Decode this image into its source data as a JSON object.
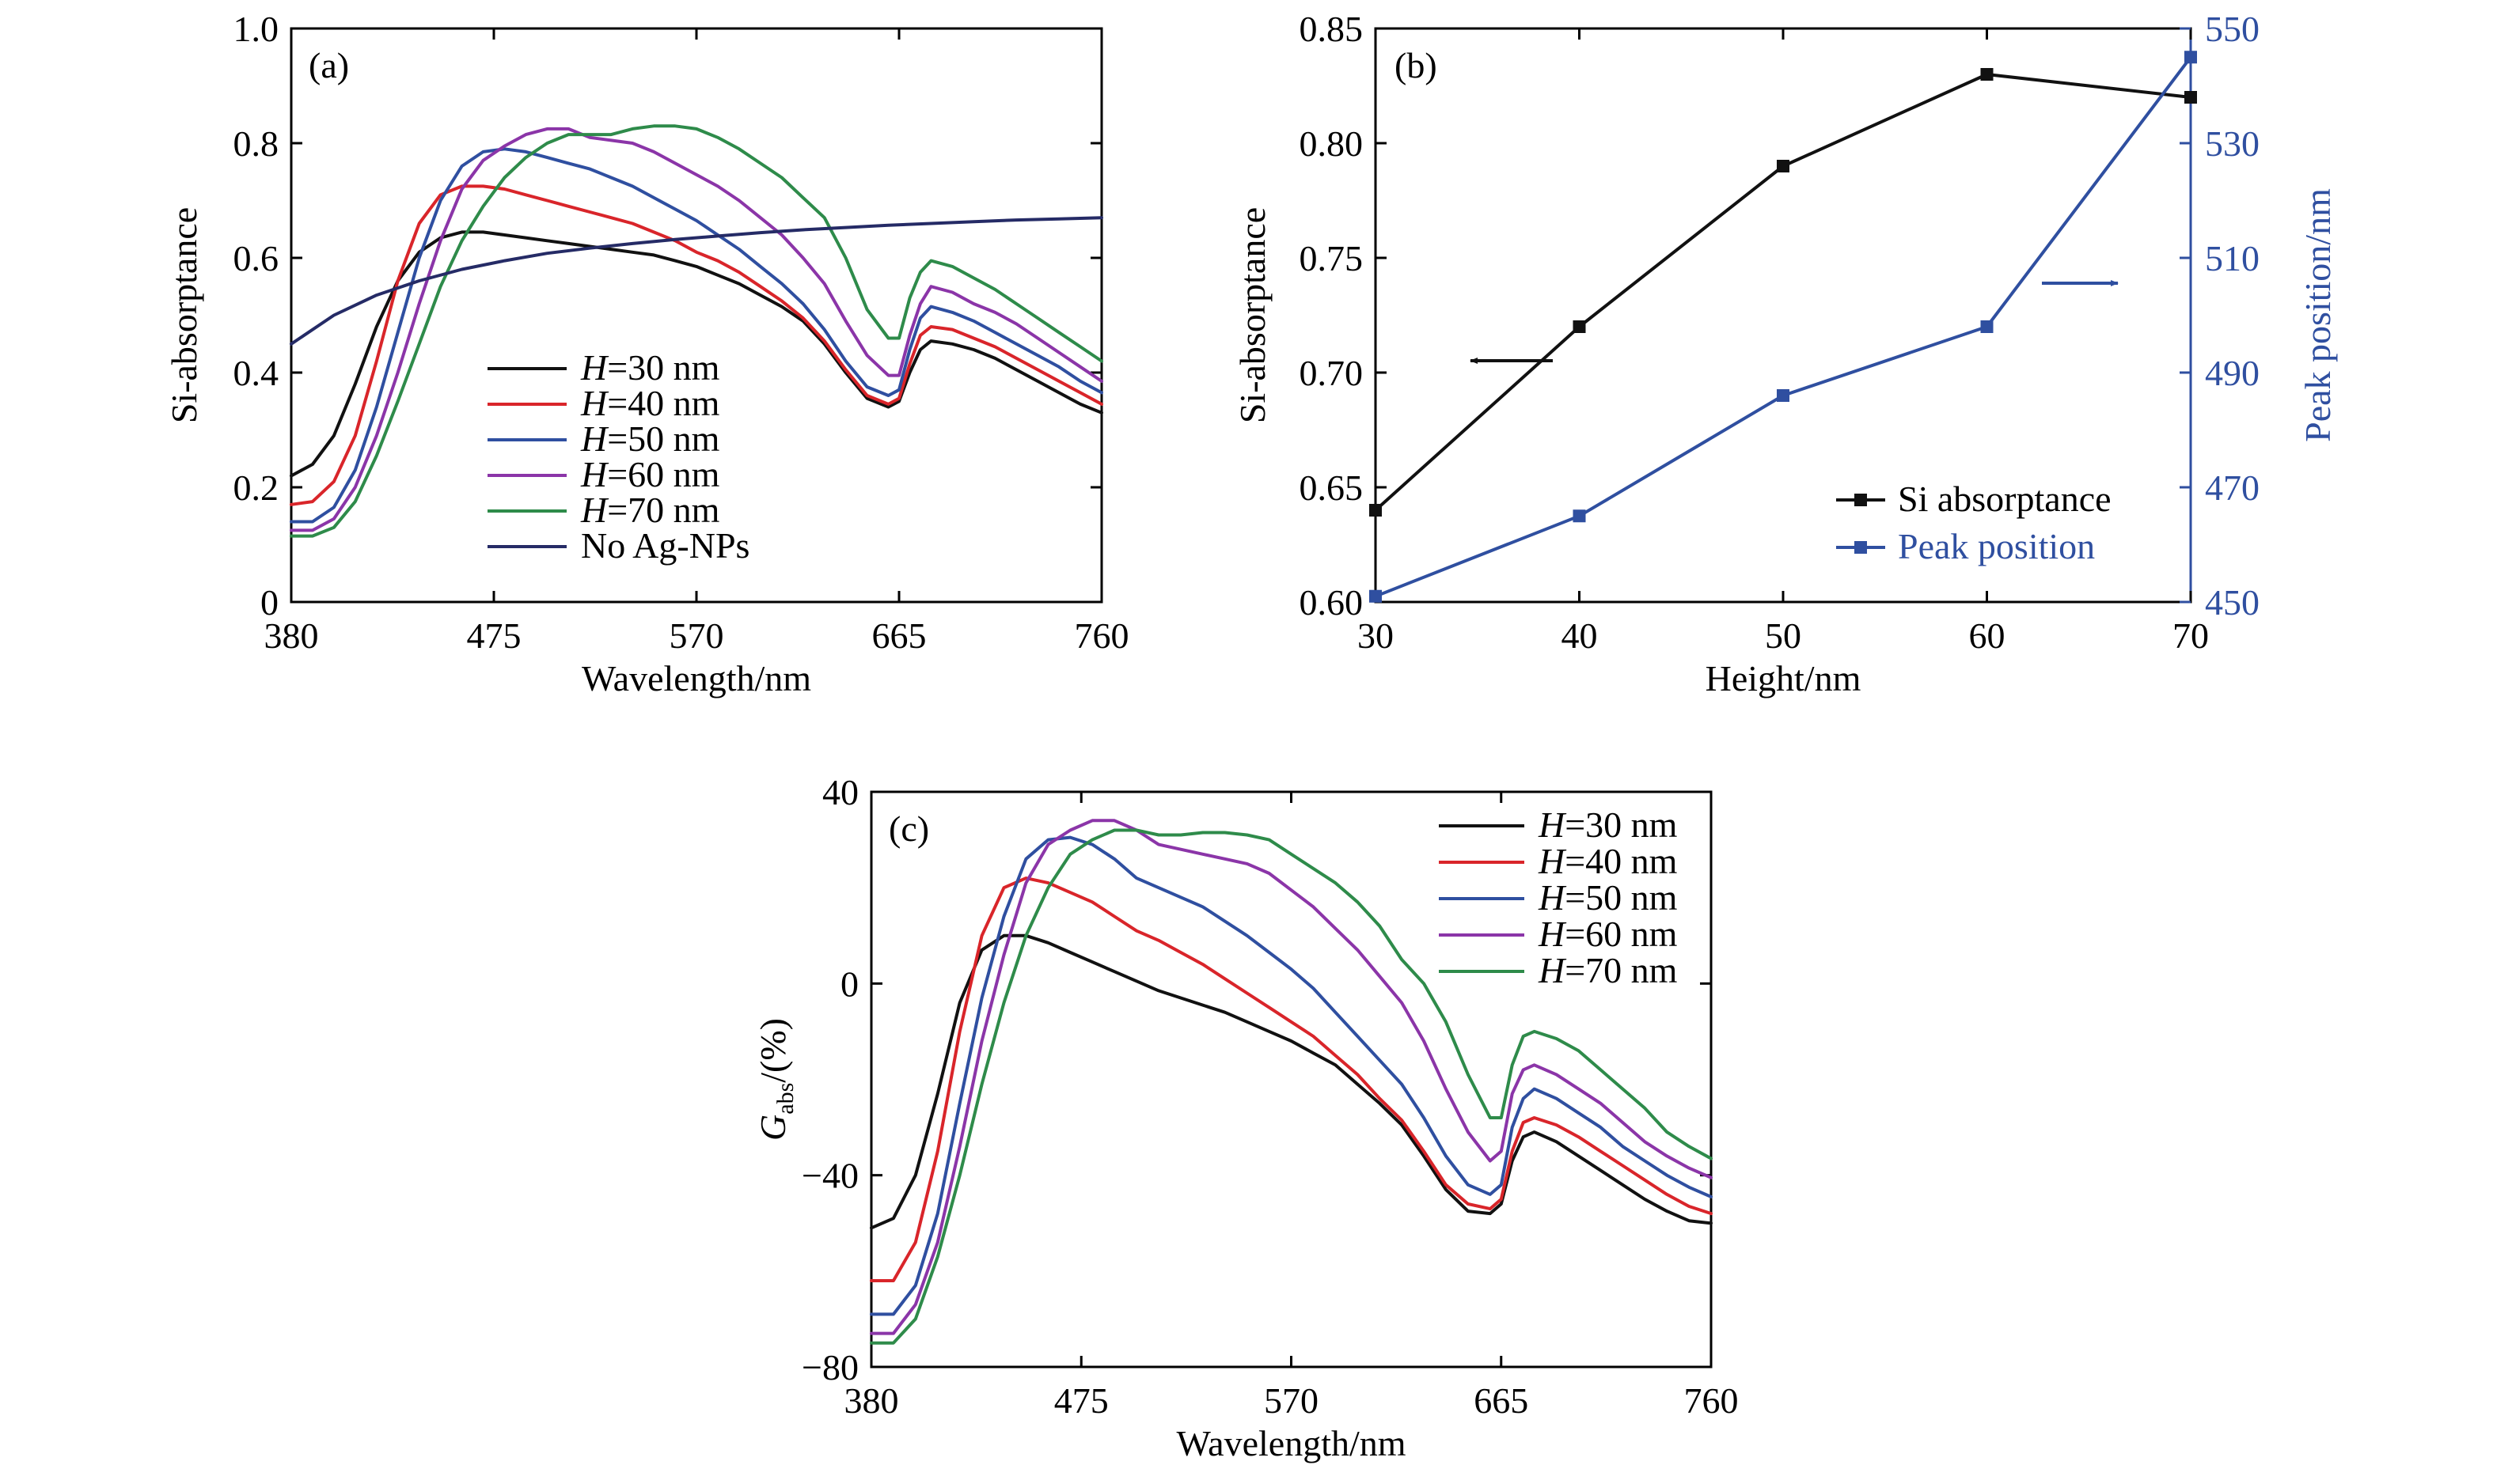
{
  "colors": {
    "h30": "#111111",
    "h40": "#d9252a",
    "h50": "#2f4fa0",
    "h60": "#8b35a8",
    "h70": "#2e8b4a",
    "no_ag": "#252b66",
    "peak_axis": "#2f4fa0"
  },
  "chart_data": [
    {
      "id": "a",
      "type": "line",
      "panel_label": "(a)",
      "xlabel": "Wavelength/nm",
      "ylabel": "Si-absorptance",
      "xlim": [
        380,
        760
      ],
      "ylim": [
        0,
        1.0
      ],
      "xticks": [
        "380",
        "475",
        "570",
        "665",
        "760"
      ],
      "yticks": [
        "0",
        "0.2",
        "0.4",
        "0.6",
        "0.8",
        "1.0"
      ],
      "legend_position": "lower-center",
      "series": [
        {
          "name": "=30 nm",
          "name_italic": "H",
          "color_key": "h30",
          "x": [
            380,
            390,
            400,
            410,
            420,
            430,
            440,
            450,
            460,
            470,
            480,
            490,
            500,
            510,
            520,
            530,
            540,
            550,
            560,
            570,
            580,
            590,
            600,
            610,
            620,
            630,
            640,
            650,
            660,
            665,
            670,
            675,
            680,
            690,
            700,
            710,
            720,
            730,
            740,
            750,
            760
          ],
          "y": [
            0.22,
            0.24,
            0.29,
            0.38,
            0.48,
            0.56,
            0.61,
            0.635,
            0.645,
            0.645,
            0.64,
            0.635,
            0.63,
            0.625,
            0.62,
            0.615,
            0.61,
            0.605,
            0.595,
            0.585,
            0.57,
            0.555,
            0.535,
            0.515,
            0.49,
            0.45,
            0.4,
            0.355,
            0.34,
            0.35,
            0.4,
            0.44,
            0.455,
            0.45,
            0.44,
            0.425,
            0.405,
            0.385,
            0.365,
            0.345,
            0.33
          ]
        },
        {
          "name": "=40 nm",
          "name_italic": "H",
          "color_key": "h40",
          "x": [
            380,
            390,
            400,
            410,
            420,
            430,
            440,
            450,
            460,
            470,
            480,
            490,
            500,
            510,
            520,
            530,
            540,
            550,
            560,
            570,
            580,
            590,
            600,
            610,
            620,
            630,
            640,
            650,
            660,
            665,
            670,
            675,
            680,
            690,
            700,
            710,
            720,
            730,
            740,
            750,
            760
          ],
          "y": [
            0.17,
            0.175,
            0.21,
            0.29,
            0.42,
            0.56,
            0.66,
            0.71,
            0.725,
            0.725,
            0.72,
            0.71,
            0.7,
            0.69,
            0.68,
            0.67,
            0.66,
            0.645,
            0.63,
            0.61,
            0.595,
            0.575,
            0.55,
            0.525,
            0.495,
            0.455,
            0.405,
            0.36,
            0.345,
            0.355,
            0.415,
            0.465,
            0.48,
            0.475,
            0.46,
            0.445,
            0.425,
            0.405,
            0.385,
            0.365,
            0.345
          ]
        },
        {
          "name": "=50 nm",
          "name_italic": "H",
          "color_key": "h50",
          "x": [
            380,
            390,
            400,
            410,
            420,
            430,
            440,
            450,
            460,
            470,
            480,
            490,
            500,
            510,
            520,
            530,
            540,
            550,
            560,
            570,
            580,
            590,
            600,
            610,
            620,
            630,
            640,
            650,
            660,
            665,
            670,
            675,
            680,
            690,
            700,
            710,
            720,
            730,
            740,
            750,
            760
          ],
          "y": [
            0.14,
            0.14,
            0.165,
            0.23,
            0.34,
            0.47,
            0.6,
            0.7,
            0.76,
            0.785,
            0.79,
            0.785,
            0.775,
            0.765,
            0.755,
            0.74,
            0.725,
            0.705,
            0.685,
            0.665,
            0.64,
            0.615,
            0.585,
            0.555,
            0.52,
            0.475,
            0.42,
            0.375,
            0.36,
            0.37,
            0.44,
            0.495,
            0.515,
            0.505,
            0.49,
            0.47,
            0.45,
            0.43,
            0.41,
            0.385,
            0.365
          ]
        },
        {
          "name": "=60 nm",
          "name_italic": "H",
          "color_key": "h60",
          "x": [
            380,
            390,
            400,
            410,
            420,
            430,
            440,
            450,
            460,
            470,
            480,
            490,
            500,
            510,
            520,
            530,
            540,
            550,
            560,
            570,
            580,
            590,
            600,
            610,
            620,
            630,
            640,
            650,
            660,
            665,
            670,
            675,
            680,
            690,
            700,
            710,
            720,
            730,
            740,
            750,
            760
          ],
          "y": [
            0.125,
            0.125,
            0.145,
            0.2,
            0.29,
            0.4,
            0.52,
            0.63,
            0.72,
            0.77,
            0.795,
            0.815,
            0.825,
            0.825,
            0.81,
            0.805,
            0.8,
            0.785,
            0.765,
            0.745,
            0.725,
            0.7,
            0.67,
            0.64,
            0.6,
            0.555,
            0.49,
            0.43,
            0.395,
            0.395,
            0.465,
            0.52,
            0.55,
            0.54,
            0.52,
            0.505,
            0.485,
            0.46,
            0.435,
            0.41,
            0.385
          ]
        },
        {
          "name": "=70 nm",
          "name_italic": "H",
          "color_key": "h70",
          "x": [
            380,
            390,
            400,
            410,
            420,
            430,
            440,
            450,
            460,
            470,
            480,
            490,
            500,
            510,
            520,
            530,
            540,
            550,
            560,
            570,
            580,
            590,
            600,
            610,
            620,
            630,
            640,
            650,
            660,
            665,
            670,
            675,
            680,
            690,
            700,
            710,
            720,
            730,
            740,
            750,
            760
          ],
          "y": [
            0.115,
            0.115,
            0.13,
            0.175,
            0.255,
            0.35,
            0.45,
            0.55,
            0.63,
            0.69,
            0.74,
            0.775,
            0.8,
            0.815,
            0.815,
            0.815,
            0.825,
            0.83,
            0.83,
            0.825,
            0.81,
            0.79,
            0.765,
            0.74,
            0.705,
            0.67,
            0.6,
            0.51,
            0.46,
            0.46,
            0.53,
            0.575,
            0.595,
            0.585,
            0.565,
            0.545,
            0.52,
            0.495,
            0.47,
            0.445,
            0.42
          ]
        },
        {
          "name": "No Ag-NPs",
          "name_italic": "",
          "color_key": "no_ag",
          "x": [
            380,
            400,
            420,
            440,
            460,
            480,
            500,
            520,
            540,
            560,
            580,
            600,
            620,
            640,
            660,
            680,
            700,
            720,
            740,
            760
          ],
          "y": [
            0.45,
            0.5,
            0.535,
            0.56,
            0.58,
            0.595,
            0.608,
            0.617,
            0.625,
            0.632,
            0.638,
            0.644,
            0.649,
            0.653,
            0.657,
            0.66,
            0.663,
            0.666,
            0.668,
            0.67
          ]
        }
      ]
    },
    {
      "id": "b",
      "type": "line",
      "panel_label": "(b)",
      "xlabel": "Height/nm",
      "ylabel": "Si-absorptance",
      "ylabel_right": "Peak position/nm",
      "xlim": [
        30,
        70
      ],
      "ylim": [
        0.6,
        0.85
      ],
      "ylim_right": [
        450,
        550
      ],
      "xticks": [
        "30",
        "40",
        "50",
        "60",
        "70"
      ],
      "yticks": [
        "0.60",
        "0.65",
        "0.70",
        "0.75",
        "0.80",
        "0.85"
      ],
      "yticks_right": [
        "450",
        "470",
        "490",
        "510",
        "530",
        "550"
      ],
      "legend_position": "lower-right",
      "series": [
        {
          "name": "Si absorptance",
          "axis": "left",
          "color_key": "h30",
          "x": [
            30,
            40,
            50,
            60,
            70
          ],
          "y": [
            0.64,
            0.72,
            0.79,
            0.83,
            0.82
          ]
        },
        {
          "name": "Peak position",
          "axis": "right",
          "color_key": "peak_axis",
          "x": [
            30,
            40,
            50,
            60,
            70
          ],
          "y": [
            451,
            465,
            486,
            498,
            545
          ]
        }
      ]
    },
    {
      "id": "c",
      "type": "line",
      "panel_label": "(c)",
      "xlabel": "Wavelength/nm",
      "ylabel_italic": "G",
      "ylabel_sub": "abs",
      "ylabel_rest": "/(%)",
      "xlim": [
        380,
        760
      ],
      "ylim": [
        -80,
        40
      ],
      "xticks": [
        "380",
        "475",
        "570",
        "665",
        "760"
      ],
      "yticks": [
        "−80",
        "−40",
        "0",
        "40"
      ],
      "legend_position": "top-right",
      "series": [
        {
          "name": "=30 nm",
          "name_italic": "H",
          "color_key": "h30",
          "x": [
            380,
            390,
            400,
            410,
            420,
            430,
            440,
            450,
            460,
            470,
            480,
            490,
            500,
            510,
            520,
            530,
            540,
            550,
            560,
            570,
            580,
            590,
            600,
            610,
            620,
            630,
            640,
            650,
            660,
            665,
            670,
            675,
            680,
            690,
            700,
            710,
            720,
            730,
            740,
            750,
            760
          ],
          "y": [
            -51,
            -49,
            -40,
            -23,
            -4,
            7,
            10,
            10,
            8.5,
            6.5,
            4.5,
            2.5,
            0.5,
            -1.5,
            -3,
            -4.5,
            -6,
            -8,
            -10,
            -12,
            -14.5,
            -17,
            -21,
            -25,
            -29.5,
            -36,
            -43,
            -47.5,
            -48,
            -46,
            -37,
            -32,
            -31,
            -33,
            -36,
            -39,
            -42,
            -45,
            -47.5,
            -49.5,
            -50
          ]
        },
        {
          "name": "=40 nm",
          "name_italic": "H",
          "color_key": "h40",
          "x": [
            380,
            390,
            400,
            410,
            420,
            430,
            440,
            450,
            460,
            470,
            480,
            490,
            500,
            510,
            520,
            530,
            540,
            550,
            560,
            570,
            580,
            590,
            600,
            610,
            620,
            630,
            640,
            650,
            660,
            665,
            670,
            675,
            680,
            690,
            700,
            710,
            720,
            730,
            740,
            750,
            760
          ],
          "y": [
            -62,
            -62,
            -54,
            -35,
            -10,
            10,
            20,
            22,
            21,
            19,
            17,
            14,
            11,
            9,
            6.5,
            4,
            1,
            -2,
            -5,
            -8,
            -11,
            -15,
            -19,
            -24,
            -28.5,
            -35,
            -42,
            -46,
            -47,
            -45,
            -35,
            -29,
            -28,
            -29.5,
            -32,
            -35,
            -38,
            -41,
            -44,
            -46.5,
            -48
          ]
        },
        {
          "name": "=50 nm",
          "name_italic": "H",
          "color_key": "h50",
          "x": [
            380,
            390,
            400,
            410,
            420,
            430,
            440,
            450,
            460,
            470,
            480,
            490,
            500,
            510,
            520,
            530,
            540,
            550,
            560,
            570,
            580,
            590,
            600,
            610,
            620,
            630,
            640,
            650,
            660,
            665,
            670,
            675,
            680,
            690,
            700,
            710,
            720,
            730,
            740,
            750,
            760
          ],
          "y": [
            -69,
            -69,
            -63,
            -48,
            -25,
            -3,
            14,
            26,
            30,
            30.5,
            29,
            26,
            22,
            20,
            18,
            16,
            13,
            10,
            6.5,
            3,
            -1,
            -6,
            -11,
            -16,
            -21,
            -28,
            -36,
            -42,
            -44,
            -42,
            -30,
            -24,
            -22,
            -24,
            -27,
            -30,
            -34,
            -37,
            -40,
            -42.5,
            -44.5
          ]
        },
        {
          "name": "=60 nm",
          "name_italic": "H",
          "color_key": "h60",
          "x": [
            380,
            390,
            400,
            410,
            420,
            430,
            440,
            450,
            460,
            470,
            480,
            490,
            500,
            510,
            520,
            530,
            540,
            550,
            560,
            570,
            580,
            590,
            600,
            610,
            620,
            630,
            640,
            650,
            660,
            665,
            670,
            675,
            680,
            690,
            700,
            710,
            720,
            730,
            740,
            750,
            760
          ],
          "y": [
            -73,
            -73,
            -67,
            -54,
            -34,
            -12,
            6,
            21,
            29,
            32,
            34,
            34,
            32,
            29,
            28,
            27,
            26,
            25,
            23,
            19.5,
            16,
            11.5,
            7,
            1.5,
            -4,
            -12,
            -22,
            -31,
            -37,
            -35,
            -23,
            -18,
            -17,
            -19,
            -22,
            -25,
            -29,
            -33,
            -36,
            -38.5,
            -40.5
          ]
        },
        {
          "name": "=70 nm",
          "name_italic": "H",
          "color_key": "h70",
          "x": [
            380,
            390,
            400,
            410,
            420,
            430,
            440,
            450,
            460,
            470,
            480,
            490,
            500,
            510,
            520,
            530,
            540,
            550,
            560,
            570,
            580,
            590,
            600,
            610,
            620,
            630,
            640,
            650,
            660,
            665,
            670,
            675,
            680,
            690,
            700,
            710,
            720,
            730,
            740,
            750,
            760
          ],
          "y": [
            -75,
            -75,
            -70,
            -57,
            -40,
            -21,
            -4,
            10,
            20,
            27,
            30,
            32,
            32,
            31,
            31,
            31.5,
            31.5,
            31,
            30,
            27,
            24,
            21,
            17,
            12,
            5,
            0,
            -8,
            -19,
            -28,
            -28,
            -17,
            -11,
            -10,
            -11.5,
            -14,
            -18,
            -22,
            -26,
            -31,
            -34,
            -36.5
          ]
        }
      ]
    }
  ]
}
